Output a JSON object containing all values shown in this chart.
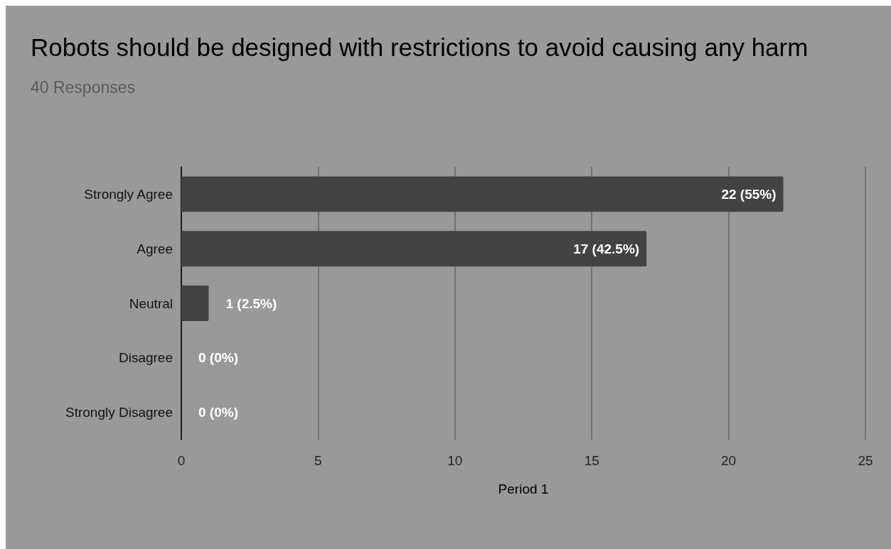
{
  "chart_data": {
    "type": "bar",
    "orientation": "horizontal",
    "title": "Robots should be designed with restrictions to avoid causing any harm",
    "subtitle": "40 Responses",
    "xlabel": "Period 1",
    "categories": [
      "Strongly Agree",
      "Agree",
      "Neutral",
      "Disagree",
      "Strongly Disagree"
    ],
    "values": [
      22,
      17,
      1,
      0,
      0
    ],
    "value_labels": [
      "22 (55%)",
      "17 (42.5%)",
      "1 (2.5%)",
      "0 (0%)",
      "0 (0%)"
    ],
    "color": "#434343",
    "xlim": [
      0,
      25
    ],
    "xticks": [
      0,
      5,
      10,
      15,
      20,
      25
    ],
    "grid": "x"
  }
}
